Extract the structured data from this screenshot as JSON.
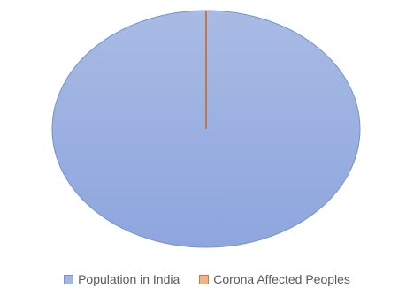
{
  "chart_data": {
    "type": "pie",
    "title": "",
    "categories": [
      "Population in India",
      "Corona Affected Peoples"
    ],
    "values": [
      1380000000,
      100000
    ],
    "colors": [
      "#a3b6e2",
      "#f4b183"
    ],
    "border_colors": [
      "#7691d0",
      "#c9764a"
    ],
    "legend_position": "bottom"
  }
}
